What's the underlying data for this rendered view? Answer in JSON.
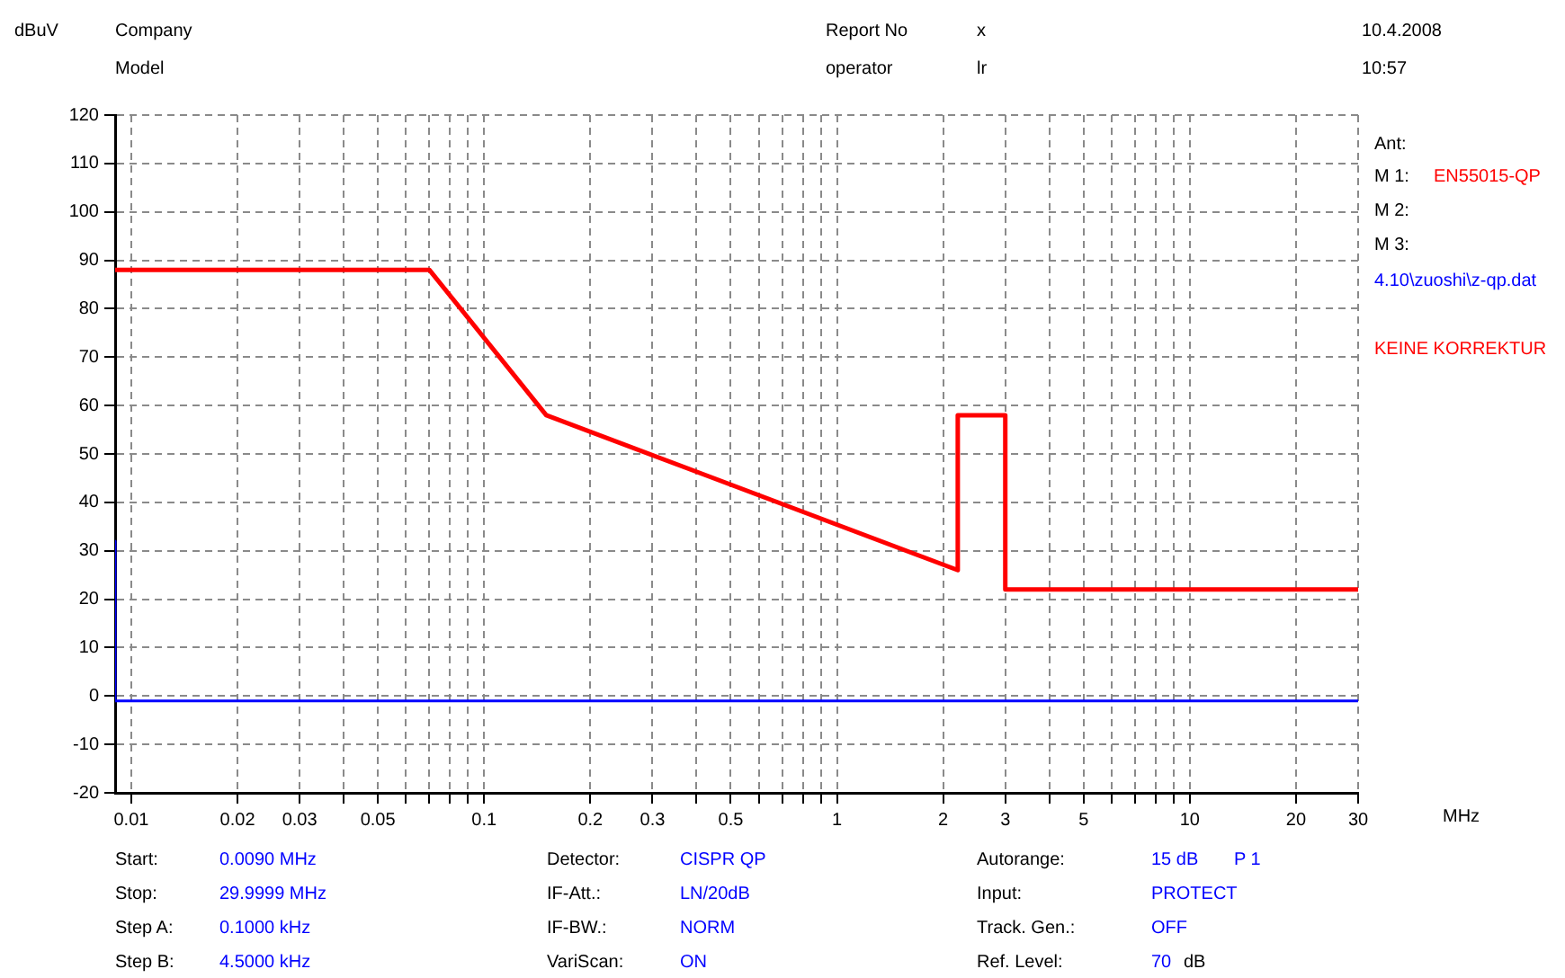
{
  "chart_data": {
    "type": "line",
    "ylabel": "dBuV",
    "xlabel": "MHz",
    "log": "x",
    "grid": true,
    "marker": "none",
    "line_style": "solid",
    "xlim": [
      0.009,
      30
    ],
    "ylim": [
      -20,
      120
    ],
    "xticks": [
      0.01,
      0.02,
      0.03,
      {
        "value": 0.04,
        "label": null
      },
      0.05,
      {
        "value": 0.06,
        "label": null
      },
      {
        "value": 0.07,
        "label": null
      },
      {
        "value": 0.08,
        "label": null
      },
      {
        "value": 0.09,
        "label": null
      },
      0.1,
      0.2,
      0.3,
      {
        "value": 0.4,
        "label": null
      },
      0.5,
      {
        "value": 0.6,
        "label": null
      },
      {
        "value": 0.7,
        "label": null
      },
      {
        "value": 0.8,
        "label": null
      },
      {
        "value": 0.9,
        "label": null
      },
      1,
      2,
      3,
      {
        "value": 4,
        "label": null
      },
      5,
      {
        "value": 6,
        "label": null
      },
      {
        "value": 7,
        "label": null
      },
      {
        "value": 8,
        "label": null
      },
      {
        "value": 9,
        "label": null
      },
      10,
      20,
      30
    ],
    "yticks": [
      -20,
      -10,
      0,
      10,
      20,
      30,
      40,
      50,
      60,
      70,
      80,
      90,
      100,
      110,
      120
    ],
    "series": [
      {
        "name": "EN55015-QP",
        "color": "#ff0000",
        "x": [
          0.009,
          0.07,
          0.15,
          2.2,
          2.2,
          3,
          3,
          30
        ],
        "values": [
          88,
          88,
          58,
          26,
          58,
          58,
          22,
          22
        ]
      },
      {
        "color": "#0000ff",
        "x": [
          0.009,
          0.009,
          30
        ],
        "values": [
          32,
          -1,
          -1
        ]
      }
    ],
    "annotations": [
      "Company",
      "Model",
      "Report No",
      "x",
      "operator",
      "lr",
      "10.4.2008",
      "10:57",
      "Ant:",
      "M 1:",
      "M 2:",
      "M 3:",
      "4.10\\zuoshi\\z-qp.dat",
      "KEINE KORREKTUR",
      "Start:",
      "0.0090 MHz",
      "Stop:",
      "29.9999 MHz",
      "Step A:",
      "0.1000 kHz",
      "Step B:",
      "4.5000 kHz",
      "Detector:",
      "CISPR QP",
      "IF-Att.:",
      "LN/20dB",
      "IF-BW.:",
      "NORM",
      "VariScan:",
      "ON",
      "Autorange:",
      "15 dB",
      "P 1",
      "Input:",
      "PROTECT",
      "Track. Gen.:",
      "OFF",
      "Ref. Level:",
      "70",
      "dB"
    ]
  }
}
